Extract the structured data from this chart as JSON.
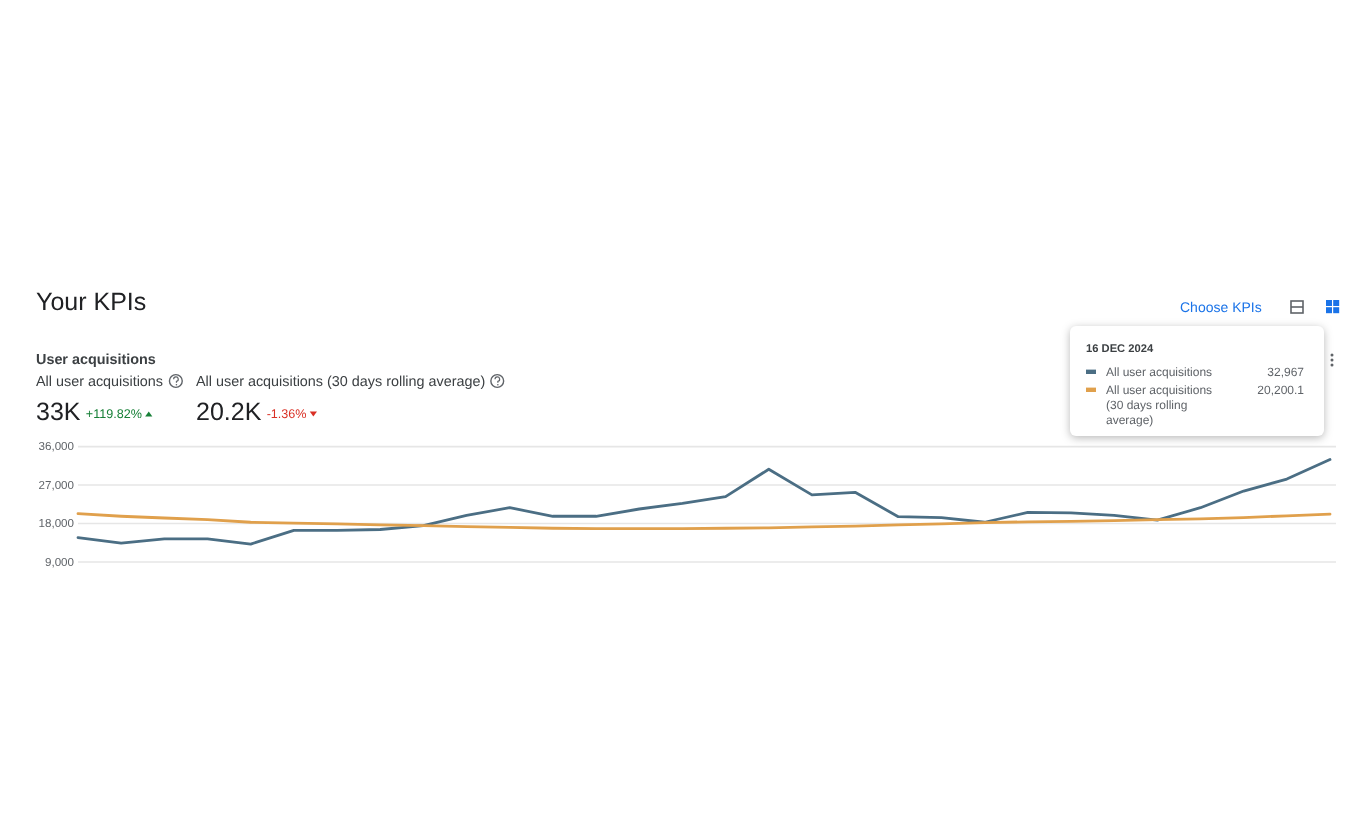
{
  "chart_data": {
    "type": "line",
    "title": "Your KPIs",
    "subtitle": "User acquisitions",
    "annotations": [
      "All user acquisitions",
      "33K",
      "+119.82%",
      "All user acquisitions (30 days rolling average)",
      "20.2K",
      "-1.36%",
      "Choose KPIs",
      "16 DEC 2024",
      "32,967",
      "20,200.1"
    ],
    "categories": [
      null,
      null,
      null,
      null,
      null,
      null,
      null,
      null,
      null,
      null,
      null,
      null,
      null,
      null,
      null,
      null,
      null,
      null,
      null,
      null,
      null,
      null,
      null,
      null,
      null,
      null,
      null,
      null,
      null,
      null
    ],
    "series": [
      {
        "name": "All user acquisitions",
        "color": "#4b6e84",
        "values": [
          14700,
          13400,
          14400,
          14400,
          13200,
          16400,
          16400,
          16600,
          17500,
          19900,
          21700,
          19700,
          19700,
          21400,
          22700,
          24300,
          30700,
          24700,
          25300,
          19600,
          19400,
          18300,
          20600,
          20500,
          19900,
          18800,
          21700,
          25600,
          28400,
          32967
        ]
      },
      {
        "name": "All user acquisitions (30 days rolling average)",
        "color": "#e0a04c",
        "values": [
          20300,
          19700,
          19300,
          18900,
          18300,
          18100,
          17900,
          17700,
          17500,
          17300,
          17100,
          16900,
          16800,
          16800,
          16800,
          16900,
          17000,
          17200,
          17400,
          17700,
          17900,
          18200,
          18400,
          18500,
          18700,
          18900,
          19100,
          19400,
          19800,
          20200.1
        ]
      }
    ],
    "ylim": [
      9000,
      36000
    ],
    "yticks": [
      {
        "value": 9000,
        "label": "9,000"
      },
      {
        "value": 18000,
        "label": "18,000"
      },
      {
        "value": 27000,
        "label": "27,000"
      },
      {
        "value": 36000,
        "label": "36,000"
      }
    ],
    "grid": "y",
    "legend": "top right",
    "tick_labels": "y"
  }
}
